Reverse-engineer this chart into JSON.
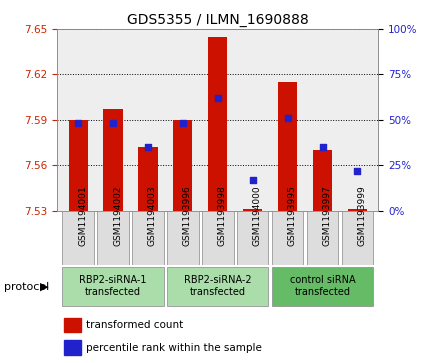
{
  "title": "GDS5355 / ILMN_1690888",
  "samples": [
    "GSM1194001",
    "GSM1194002",
    "GSM1194003",
    "GSM1193996",
    "GSM1193998",
    "GSM1194000",
    "GSM1193995",
    "GSM1193997",
    "GSM1193999"
  ],
  "transformed_counts": [
    7.59,
    7.597,
    7.572,
    7.59,
    7.645,
    7.531,
    7.615,
    7.57,
    7.531
  ],
  "percentile_ranks": [
    48,
    48,
    35,
    48,
    62,
    17,
    51,
    35,
    22
  ],
  "ylim_left": [
    7.53,
    7.65
  ],
  "ylim_right": [
    0,
    100
  ],
  "yticks_left": [
    7.53,
    7.56,
    7.59,
    7.62,
    7.65
  ],
  "yticks_right": [
    0,
    25,
    50,
    75,
    100
  ],
  "bar_color": "#cc1100",
  "dot_color": "#2222cc",
  "bar_bottom": 7.53,
  "protocol_groups": [
    {
      "label": "RBP2-siRNA-1\ntransfected",
      "start": 0,
      "end": 3,
      "color": "#aaddaa"
    },
    {
      "label": "RBP2-siRNA-2\ntransfected",
      "start": 3,
      "end": 6,
      "color": "#aaddaa"
    },
    {
      "label": "control siRNA\ntransfected",
      "start": 6,
      "end": 9,
      "color": "#66bb66"
    }
  ],
  "protocol_label": "protocol",
  "grid_color": "#000000",
  "axis_bg": "#eeeeee",
  "left_tick_color": "#cc2200",
  "right_tick_color": "#2222cc",
  "tick_label_fontsize": 7.5,
  "bar_width": 0.55,
  "dot_size": 25,
  "title_fontsize": 10
}
